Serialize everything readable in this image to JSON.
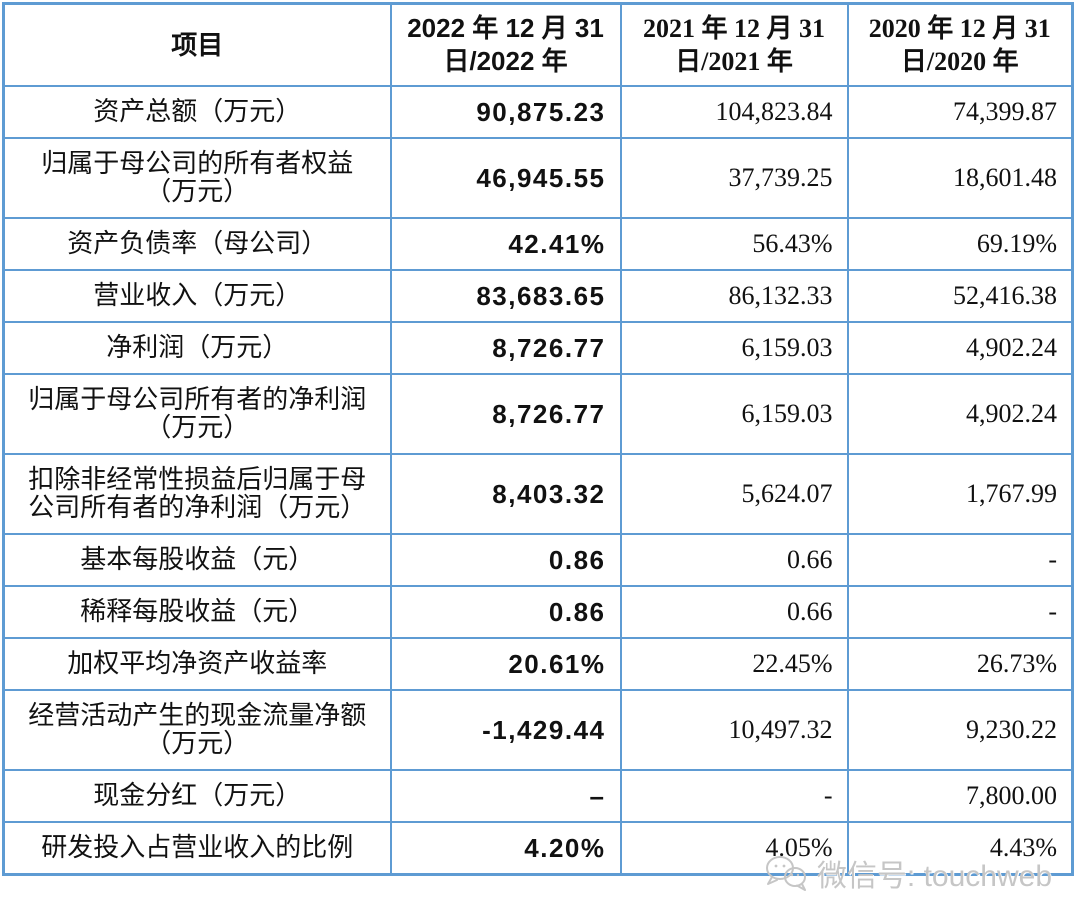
{
  "chart_data": {
    "type": "table",
    "title": "",
    "columns": [
      "项目",
      "2022 年 12 月 31\n日/2022 年",
      "2021 年 12 月 31\n日/2021 年",
      "2020 年 12 月 31\n日/2020 年"
    ],
    "rows": [
      [
        "资产总额（万元）",
        "90,875.23",
        "104,823.84",
        "74,399.87"
      ],
      [
        "归属于母公司的所有者权益\n（万元）",
        "46,945.55",
        "37,739.25",
        "18,601.48"
      ],
      [
        "资产负债率（母公司）",
        "42.41%",
        "56.43%",
        "69.19%"
      ],
      [
        "营业收入（万元）",
        "83,683.65",
        "86,132.33",
        "52,416.38"
      ],
      [
        "净利润（万元）",
        "8,726.77",
        "6,159.03",
        "4,902.24"
      ],
      [
        "归属于母公司所有者的净利润\n（万元）",
        "8,726.77",
        "6,159.03",
        "4,902.24"
      ],
      [
        "扣除非经常性损益后归属于母\n公司所有者的净利润（万元）",
        "8,403.32",
        "5,624.07",
        "1,767.99"
      ],
      [
        "基本每股收益（元）",
        "0.86",
        "0.66",
        "-"
      ],
      [
        "稀释每股收益（元）",
        "0.86",
        "0.66",
        "-"
      ],
      [
        "加权平均净资产收益率",
        "20.61%",
        "22.45%",
        "26.73%"
      ],
      [
        "经营活动产生的现金流量净额\n（万元）",
        "-1,429.44",
        "10,497.32",
        "9,230.22"
      ],
      [
        "现金分红（万元）",
        "–",
        "-",
        "7,800.00"
      ],
      [
        "研发投入占营业收入的比例",
        "4.20%",
        "4.05%",
        "4.43%"
      ]
    ],
    "layout_hints": {
      "grid": "all-borders",
      "bold_column": "2022 年 12 月 31 日/2022 年",
      "value_alignment": "right",
      "label_alignment": "center"
    }
  },
  "watermark": {
    "icon": "wechat-icon",
    "label": "微信号: touchweb"
  },
  "colors": {
    "table_border": "#5e9bd3",
    "text": "#111111",
    "watermark_text": "#c6c6c6",
    "background": "#ffffff"
  }
}
